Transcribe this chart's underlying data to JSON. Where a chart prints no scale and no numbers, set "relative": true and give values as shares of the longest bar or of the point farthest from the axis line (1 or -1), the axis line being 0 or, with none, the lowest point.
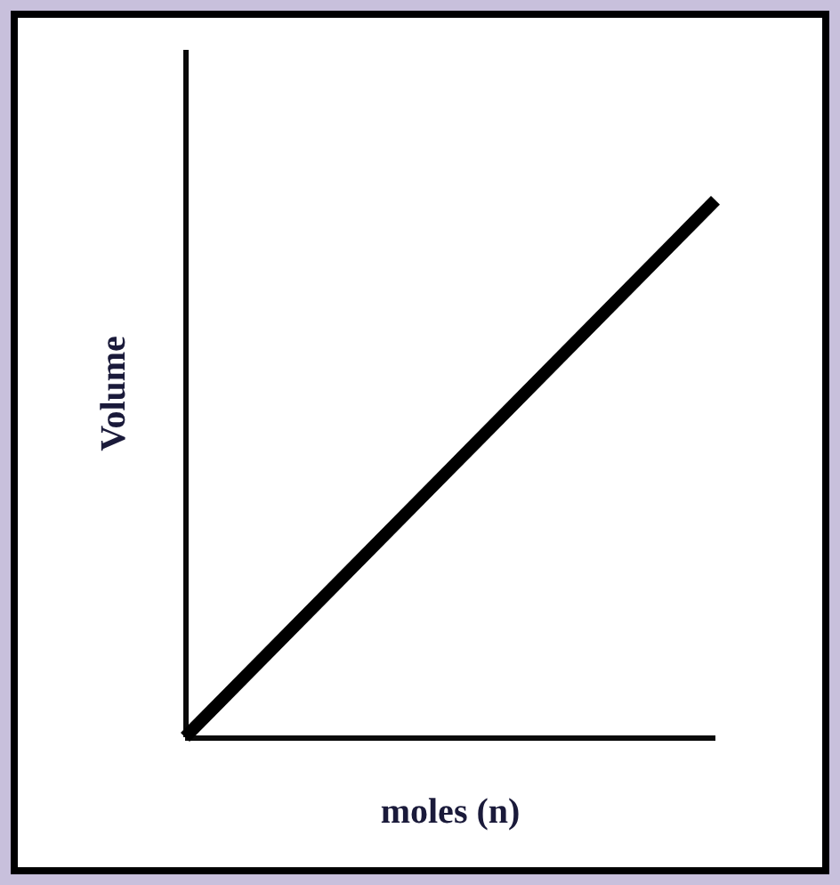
{
  "chart_data": {
    "type": "line",
    "xlabel": "moles (n)",
    "ylabel": "Volume",
    "categories": [
      null,
      null
    ],
    "relative": true,
    "series": [
      {
        "color": "#000000",
        "values": [
          0,
          1
        ]
      }
    ],
    "grid": false,
    "marker": "none",
    "line_style": "solid"
  }
}
